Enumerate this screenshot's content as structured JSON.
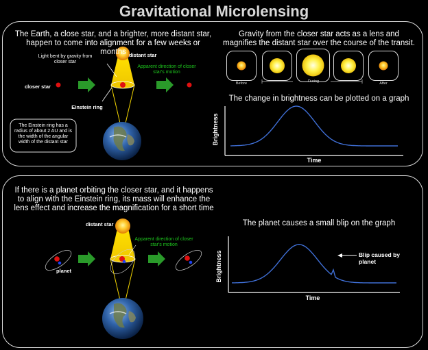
{
  "title": "Gravitational Microlensing",
  "top": {
    "intro": "The Earth, a close star, and a brighter, more distant star, happen to come into alignment for a few weeks or months",
    "light_bent": "Light bent by gravity from closer star",
    "distant_star": "distant star",
    "apparent_dir": "Apparent direction of closer star's motion",
    "closer_star": "closer star",
    "einstein_ring": "Einstein ring",
    "note": "The Einstein ring has a radius of about 2 AU and is the width of the angular width of the distant star",
    "lens_text": "Gravity from the closer star acts as a lens and magnifies the distant star over the course of the transit.",
    "stages": [
      "Before",
      "During",
      "After"
    ],
    "graph_caption": "The change in brightness can be plotted on a graph",
    "y_label": "Brightness",
    "x_label": "Time"
  },
  "bottom": {
    "intro": "If there is a planet orbiting the closer star, and it happens to align with the Einstein ring, its mass will enhance the lens effect and increase the magnification for a short time",
    "distant_star": "distant star",
    "apparent_dir": "Apparent direction of closer star's motion",
    "planet": "planet",
    "graph_caption": "The planet causes a small blip on the graph",
    "y_label": "Brightness",
    "x_label": "Time",
    "blip_label": "Blip caused by planet"
  },
  "colors": {
    "curve": "#3f6fd6",
    "arrow": "#2a9a2a",
    "beam": "#f4d600",
    "star": "#e01010",
    "planet": "#1d3ff0"
  }
}
